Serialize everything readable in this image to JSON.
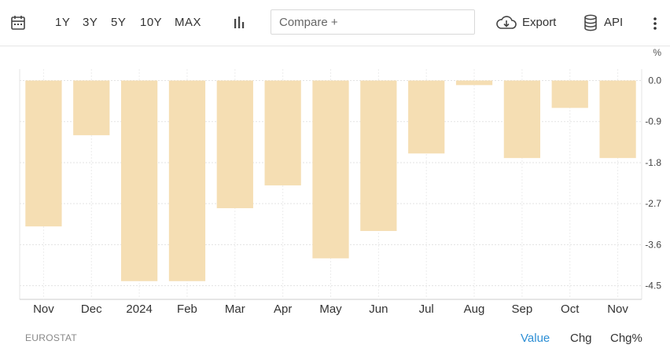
{
  "toolbar": {
    "ranges": [
      "1Y",
      "3Y",
      "5Y",
      "10Y",
      "MAX"
    ],
    "compare_placeholder": "Compare +",
    "export_label": "Export",
    "api_label": "API"
  },
  "chart_data": {
    "type": "bar",
    "categories": [
      "Nov",
      "Dec",
      "2024",
      "Feb",
      "Mar",
      "Apr",
      "May",
      "Jun",
      "Jul",
      "Aug",
      "Sep",
      "Oct",
      "Nov"
    ],
    "values": [
      -3.2,
      -1.2,
      -4.4,
      -4.4,
      -2.8,
      -2.3,
      -3.9,
      -3.3,
      -1.6,
      -0.1,
      -1.7,
      -0.6,
      -1.7
    ],
    "unit": "%",
    "yticks": [
      "0.0",
      "-0.9",
      "-1.8",
      "-2.7",
      "-3.6",
      "-4.5"
    ],
    "ylim": [
      -4.8,
      0.25
    ],
    "bar_color": "#f5deb3",
    "grid": true
  },
  "footer": {
    "source": "EUROSTAT",
    "tabs": [
      "Value",
      "Chg",
      "Chg%"
    ],
    "active_tab": "Value"
  },
  "colors": {
    "accent": "#2d8fd5",
    "bar": "#f5deb3",
    "grid": "#e3e3e3"
  }
}
